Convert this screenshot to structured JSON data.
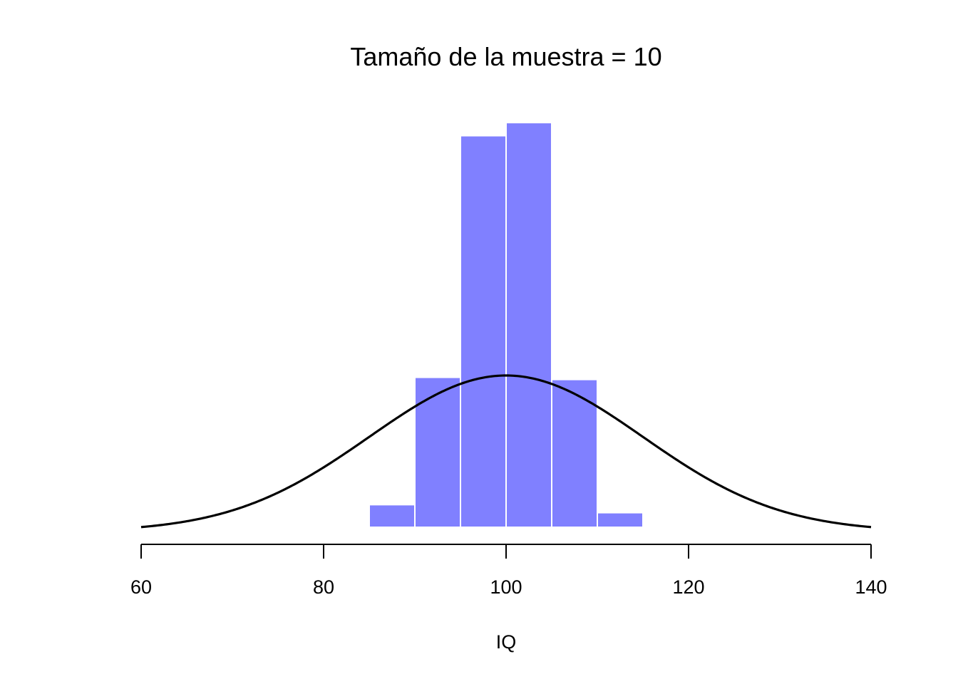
{
  "chart_data": {
    "type": "bar",
    "title": "Tamaño de la muestra = 10",
    "xlabel": "IQ",
    "ylabel": "",
    "xlim": [
      60,
      140
    ],
    "x_ticks": [
      60,
      80,
      100,
      120,
      140
    ],
    "y_axis_shown": false,
    "grid": false,
    "histogram": {
      "name": "",
      "color": "#8080FF",
      "bins": [
        {
          "start": 85,
          "end": 90,
          "density": 0.0062
        },
        {
          "start": 90,
          "end": 95,
          "density": 0.0412
        },
        {
          "start": 95,
          "end": 100,
          "density": 0.1076
        },
        {
          "start": 100,
          "end": 105,
          "density": 0.1112
        },
        {
          "start": 105,
          "end": 110,
          "density": 0.0406
        },
        {
          "start": 110,
          "end": 115,
          "density": 0.004
        }
      ]
    },
    "curve": {
      "name": "",
      "type": "normal_density",
      "mean": 100,
      "sd": 15,
      "color": "#000000"
    },
    "ylim": [
      0,
      0.112
    ]
  }
}
